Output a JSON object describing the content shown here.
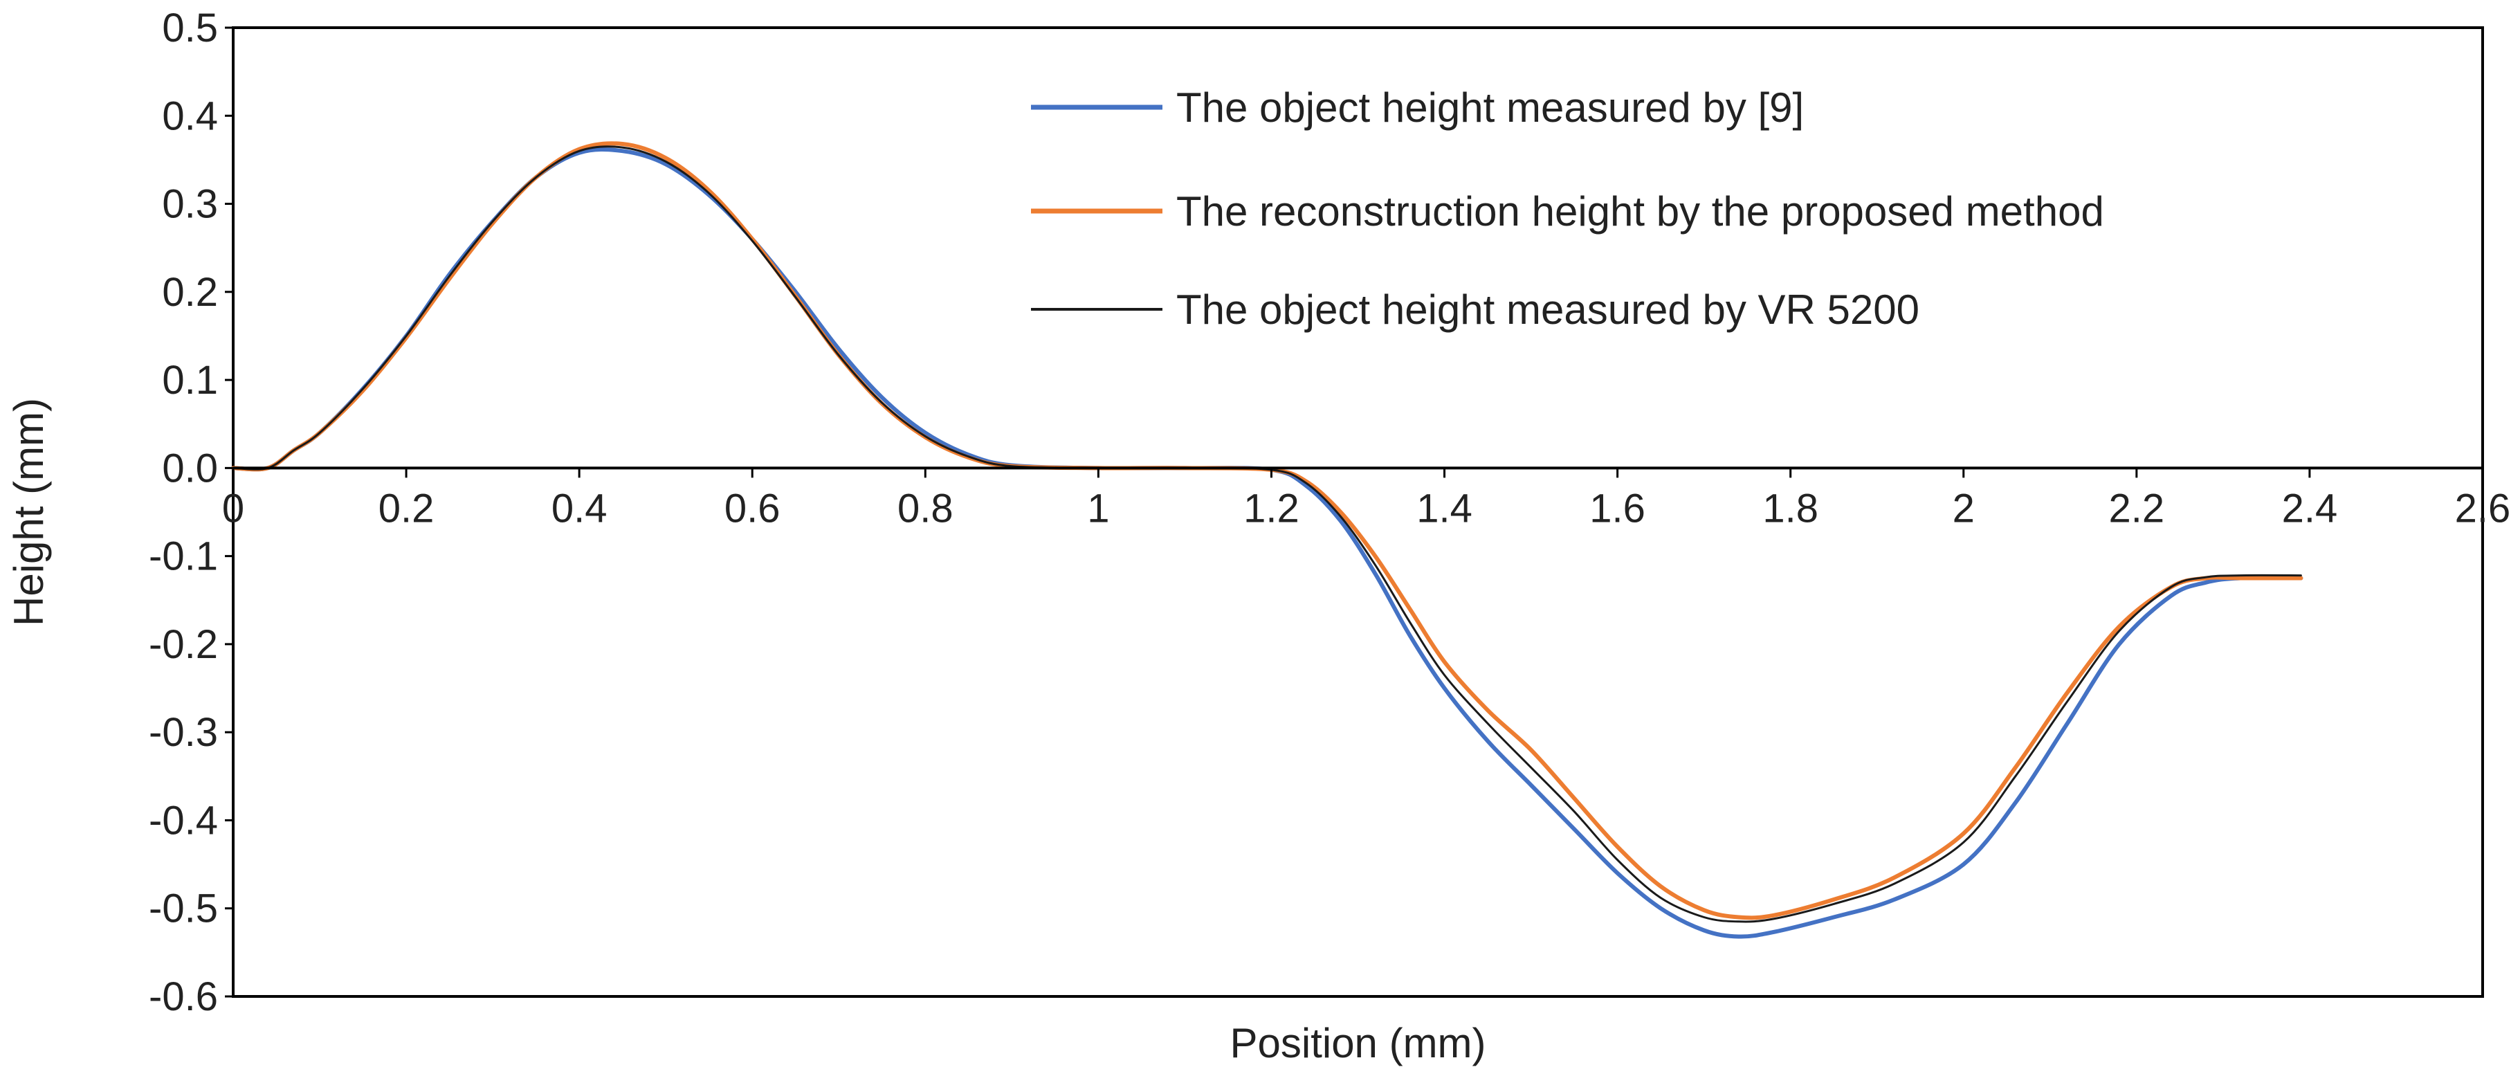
{
  "chart_data": {
    "type": "line",
    "title": "",
    "xlabel": "Position (mm)",
    "ylabel": "Height (mm)",
    "xlim": [
      0,
      2.6
    ],
    "ylim": [
      -0.6,
      0.5
    ],
    "x_ticks": [
      "0",
      "0.2",
      "0.4",
      "0.6",
      "0.8",
      "1",
      "1.2",
      "1.4",
      "1.6",
      "1.8",
      "2",
      "2.2",
      "2.4",
      "2.6"
    ],
    "x_tick_values": [
      0,
      0.2,
      0.4,
      0.6,
      0.8,
      1.0,
      1.2,
      1.4,
      1.6,
      1.8,
      2.0,
      2.2,
      2.4,
      2.6
    ],
    "y_ticks": [
      "0.5",
      "0.4",
      "0.3",
      "0.2",
      "0.1",
      "0.0",
      "-0.1",
      "-0.2",
      "-0.3",
      "-0.4",
      "-0.5",
      "-0.6"
    ],
    "y_tick_values": [
      0.5,
      0.4,
      0.3,
      0.2,
      0.1,
      0.0,
      -0.1,
      -0.2,
      -0.3,
      -0.4,
      -0.5,
      -0.6
    ],
    "grid": false,
    "legend_position": "top-right",
    "series": [
      {
        "name": "The object height measured by [9]",
        "color": "#4472C4",
        "x": [
          0,
          0.04,
          0.07,
          0.1,
          0.15,
          0.2,
          0.25,
          0.3,
          0.35,
          0.4,
          0.45,
          0.5,
          0.55,
          0.6,
          0.65,
          0.7,
          0.75,
          0.8,
          0.85,
          0.9,
          1.0,
          1.1,
          1.2,
          1.24,
          1.28,
          1.32,
          1.36,
          1.4,
          1.45,
          1.5,
          1.55,
          1.6,
          1.65,
          1.7,
          1.74,
          1.78,
          1.85,
          1.92,
          2.0,
          2.06,
          2.12,
          2.18,
          2.24,
          2.28,
          2.32,
          2.39
        ],
        "y": [
          0.0,
          0.0,
          0.02,
          0.04,
          0.09,
          0.15,
          0.22,
          0.28,
          0.33,
          0.358,
          0.36,
          0.345,
          0.31,
          0.26,
          0.2,
          0.135,
          0.08,
          0.04,
          0.015,
          0.003,
          0.0,
          0.0,
          -0.002,
          -0.02,
          -0.06,
          -0.12,
          -0.19,
          -0.25,
          -0.31,
          -0.36,
          -0.41,
          -0.46,
          -0.5,
          -0.525,
          -0.532,
          -0.527,
          -0.51,
          -0.49,
          -0.45,
          -0.38,
          -0.29,
          -0.2,
          -0.145,
          -0.13,
          -0.125,
          -0.125
        ]
      },
      {
        "name": "The reconstruction height by the proposed method",
        "color": "#ED7D31",
        "x": [
          0,
          0.04,
          0.07,
          0.1,
          0.15,
          0.2,
          0.25,
          0.3,
          0.35,
          0.4,
          0.45,
          0.5,
          0.55,
          0.6,
          0.65,
          0.7,
          0.75,
          0.8,
          0.85,
          0.9,
          1.0,
          1.1,
          1.2,
          1.24,
          1.28,
          1.32,
          1.36,
          1.4,
          1.45,
          1.5,
          1.55,
          1.6,
          1.65,
          1.7,
          1.74,
          1.78,
          1.85,
          1.92,
          2.0,
          2.06,
          2.12,
          2.18,
          2.24,
          2.28,
          2.32,
          2.39
        ],
        "y": [
          0.0,
          0.0,
          0.02,
          0.04,
          0.088,
          0.148,
          0.215,
          0.278,
          0.33,
          0.362,
          0.368,
          0.352,
          0.315,
          0.26,
          0.195,
          0.128,
          0.073,
          0.035,
          0.012,
          0.002,
          0.0,
          0.0,
          -0.002,
          -0.015,
          -0.05,
          -0.1,
          -0.16,
          -0.22,
          -0.275,
          -0.32,
          -0.375,
          -0.43,
          -0.475,
          -0.502,
          -0.51,
          -0.508,
          -0.49,
          -0.465,
          -0.415,
          -0.34,
          -0.255,
          -0.18,
          -0.135,
          -0.125,
          -0.125,
          -0.125
        ]
      },
      {
        "name": "The object height measured by VR 5200",
        "color": "#1a1a1a",
        "x": [
          0,
          0.04,
          0.07,
          0.1,
          0.15,
          0.2,
          0.25,
          0.3,
          0.35,
          0.4,
          0.45,
          0.5,
          0.55,
          0.6,
          0.65,
          0.7,
          0.75,
          0.8,
          0.85,
          0.9,
          1.0,
          1.1,
          1.2,
          1.24,
          1.28,
          1.32,
          1.36,
          1.4,
          1.45,
          1.5,
          1.55,
          1.6,
          1.65,
          1.7,
          1.74,
          1.78,
          1.85,
          1.92,
          2.0,
          2.06,
          2.12,
          2.18,
          2.24,
          2.28,
          2.32,
          2.39
        ],
        "y": [
          0.0,
          0.0,
          0.02,
          0.04,
          0.09,
          0.15,
          0.218,
          0.28,
          0.33,
          0.36,
          0.364,
          0.348,
          0.312,
          0.258,
          0.194,
          0.128,
          0.074,
          0.036,
          0.013,
          0.002,
          0.0,
          0.0,
          -0.002,
          -0.017,
          -0.055,
          -0.11,
          -0.175,
          -0.235,
          -0.29,
          -0.34,
          -0.39,
          -0.445,
          -0.488,
          -0.51,
          -0.515,
          -0.512,
          -0.495,
          -0.472,
          -0.425,
          -0.35,
          -0.265,
          -0.185,
          -0.135,
          -0.124,
          -0.122,
          -0.122
        ]
      }
    ]
  }
}
